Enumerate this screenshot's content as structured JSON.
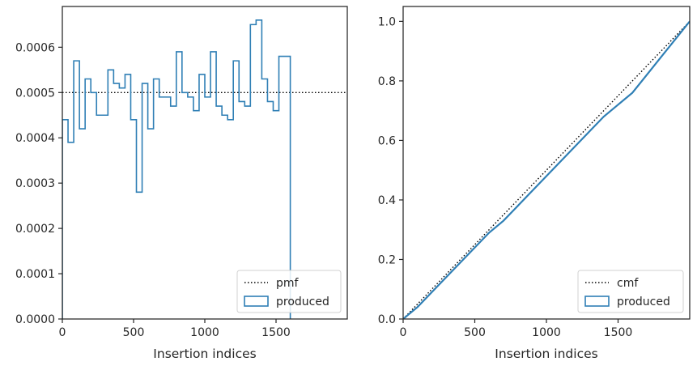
{
  "chart_data": [
    {
      "type": "histogram",
      "xlabel": "Insertion indices",
      "ylabel": "",
      "xlim": [
        0,
        2000
      ],
      "ylim": [
        0,
        0.00069
      ],
      "xticks": [
        0,
        500,
        1000,
        1500
      ],
      "yticks": [
        0,
        0.0001,
        0.0002,
        0.0003,
        0.0004,
        0.0005,
        0.0006
      ],
      "ytick_labels": [
        "0.0000",
        "0.0001",
        "0.0002",
        "0.0003",
        "0.0004",
        "0.0005",
        "0.0006"
      ],
      "legend_location": "lower right",
      "series": [
        {
          "name": "pmf",
          "style": "dotted",
          "color": "#000000",
          "x": [
            0,
            2000
          ],
          "values": [
            0.0005,
            0.0005
          ]
        },
        {
          "name": "produced",
          "style": "step",
          "color": "#2f7fb5",
          "bin_width": 40,
          "bin_start": 0,
          "values": [
            0.00044,
            0.00039,
            0.00057,
            0.00042,
            0.00053,
            0.0005,
            0.00045,
            0.00045,
            0.00055,
            0.00052,
            0.00051,
            0.00054,
            0.00044,
            0.00028,
            0.00052,
            0.00042,
            0.00053,
            0.00049,
            0.00049,
            0.00047,
            0.00059,
            0.0005,
            0.00049,
            0.00046,
            0.00054,
            0.00049,
            0.00059,
            0.00047,
            0.00045,
            0.00044,
            0.00057,
            0.00048,
            0.00047,
            0.00065,
            0.00066,
            0.00053,
            0.00048,
            0.00046,
            0.00058,
            0.00058
          ]
        }
      ]
    },
    {
      "type": "line",
      "xlabel": "Insertion indices",
      "ylabel": "",
      "xlim": [
        0,
        2000
      ],
      "ylim": [
        0,
        1.05
      ],
      "xticks": [
        0,
        500,
        1000,
        1500
      ],
      "yticks": [
        0,
        0.2,
        0.4,
        0.6,
        0.8,
        1.0
      ],
      "ytick_labels": [
        "0.0",
        "0.2",
        "0.4",
        "0.6",
        "0.8",
        "1.0"
      ],
      "legend_location": "lower right",
      "series": [
        {
          "name": "cmf",
          "style": "dotted",
          "color": "#000000",
          "x": [
            0,
            2000
          ],
          "values": [
            0,
            1
          ]
        },
        {
          "name": "produced",
          "style": "solid",
          "color": "#2f7fb5",
          "x": [
            0,
            100,
            200,
            300,
            400,
            500,
            600,
            700,
            800,
            900,
            1000,
            1100,
            1200,
            1300,
            1400,
            1500,
            1600,
            1700,
            1800,
            1900,
            2000
          ],
          "values": [
            0,
            0.04,
            0.09,
            0.14,
            0.19,
            0.24,
            0.29,
            0.33,
            0.38,
            0.43,
            0.48,
            0.53,
            0.58,
            0.63,
            0.68,
            0.72,
            0.76,
            0.82,
            0.88,
            0.94,
            1.0
          ]
        }
      ]
    }
  ]
}
